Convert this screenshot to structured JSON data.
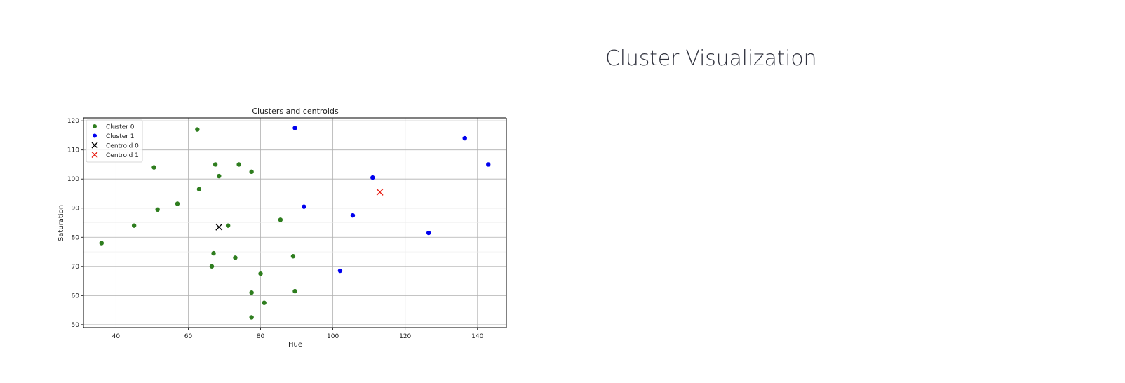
{
  "page": {
    "title": "Cluster Visualization"
  },
  "chart_data": {
    "type": "scatter",
    "title": "Clusters and centroids",
    "xlabel": "Hue",
    "ylabel": "Saturation",
    "xlim": [
      31,
      148
    ],
    "ylim": [
      49,
      121
    ],
    "xticks": [
      40,
      60,
      80,
      100,
      120,
      140
    ],
    "yticks": [
      50,
      60,
      70,
      80,
      90,
      100,
      110,
      120
    ],
    "grid": true,
    "legend_position": "top-left",
    "series": [
      {
        "name": "Cluster 0",
        "marker": "circle",
        "color": "#2e7d1e",
        "points": [
          [
            36,
            78
          ],
          [
            45,
            84
          ],
          [
            50.5,
            104
          ],
          [
            51.5,
            89.5
          ],
          [
            57,
            91.5
          ],
          [
            62.5,
            117
          ],
          [
            63,
            96.5
          ],
          [
            66.5,
            70
          ],
          [
            67,
            74.5
          ],
          [
            67.5,
            105
          ],
          [
            68.5,
            101
          ],
          [
            71,
            84
          ],
          [
            73,
            73
          ],
          [
            74,
            105
          ],
          [
            77.5,
            102.5
          ],
          [
            77.5,
            61
          ],
          [
            77.5,
            52.5
          ],
          [
            80,
            67.5
          ],
          [
            81,
            57.5
          ],
          [
            85.5,
            86
          ],
          [
            89,
            73.5
          ],
          [
            89.5,
            61.5
          ]
        ]
      },
      {
        "name": "Cluster 1",
        "marker": "circle",
        "color": "#0000ee",
        "points": [
          [
            89.5,
            117.5
          ],
          [
            92,
            90.5
          ],
          [
            102,
            68.5
          ],
          [
            105.5,
            87.5
          ],
          [
            111,
            100.5
          ],
          [
            126.5,
            81.5
          ],
          [
            136.5,
            114
          ],
          [
            143,
            105
          ]
        ]
      },
      {
        "name": "Centroid 0",
        "marker": "x",
        "color": "#000000",
        "points": [
          [
            68.5,
            83.5
          ]
        ]
      },
      {
        "name": "Centroid 1",
        "marker": "x",
        "color": "#e8190f",
        "points": [
          [
            113,
            95.5
          ]
        ]
      }
    ]
  }
}
